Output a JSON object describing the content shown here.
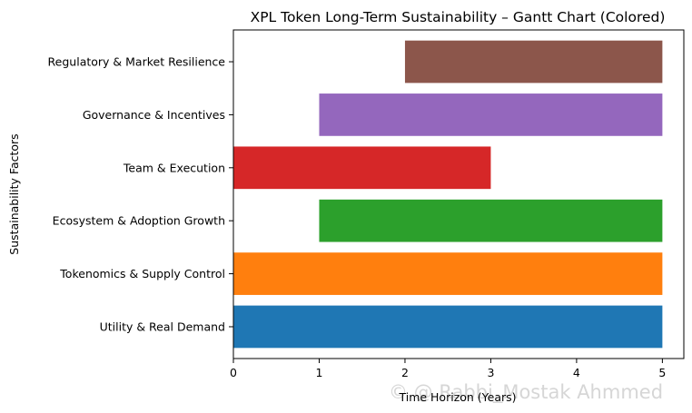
{
  "chart_data": {
    "type": "bar",
    "orientation": "horizontal",
    "style": "gantt",
    "title": "XPL Token Long-Term Sustainability – Gantt Chart (Colored)",
    "xlabel": "Time Horizon (Years)",
    "ylabel": "Sustainability Factors",
    "xlim": [
      0,
      5.25
    ],
    "x_ticks": [
      0,
      1,
      2,
      3,
      4,
      5
    ],
    "grid": false,
    "legend": "none",
    "tasks": [
      {
        "label": "Utility & Real Demand",
        "start": 0,
        "end": 5,
        "color": "#1f77b4"
      },
      {
        "label": "Tokenomics & Supply Control",
        "start": 0,
        "end": 5,
        "color": "#ff7f0e"
      },
      {
        "label": "Ecosystem & Adoption Growth",
        "start": 1,
        "end": 5,
        "color": "#2ca02c"
      },
      {
        "label": "Team & Execution",
        "start": 0,
        "end": 3,
        "color": "#d62728"
      },
      {
        "label": "Governance & Incentives",
        "start": 1,
        "end": 5,
        "color": "#9467bd"
      },
      {
        "label": "Regulatory & Market Resilience",
        "start": 2,
        "end": 5,
        "color": "#8c564b"
      }
    ]
  },
  "watermark": "© @ Rabbi_Mostak Ahmmed"
}
